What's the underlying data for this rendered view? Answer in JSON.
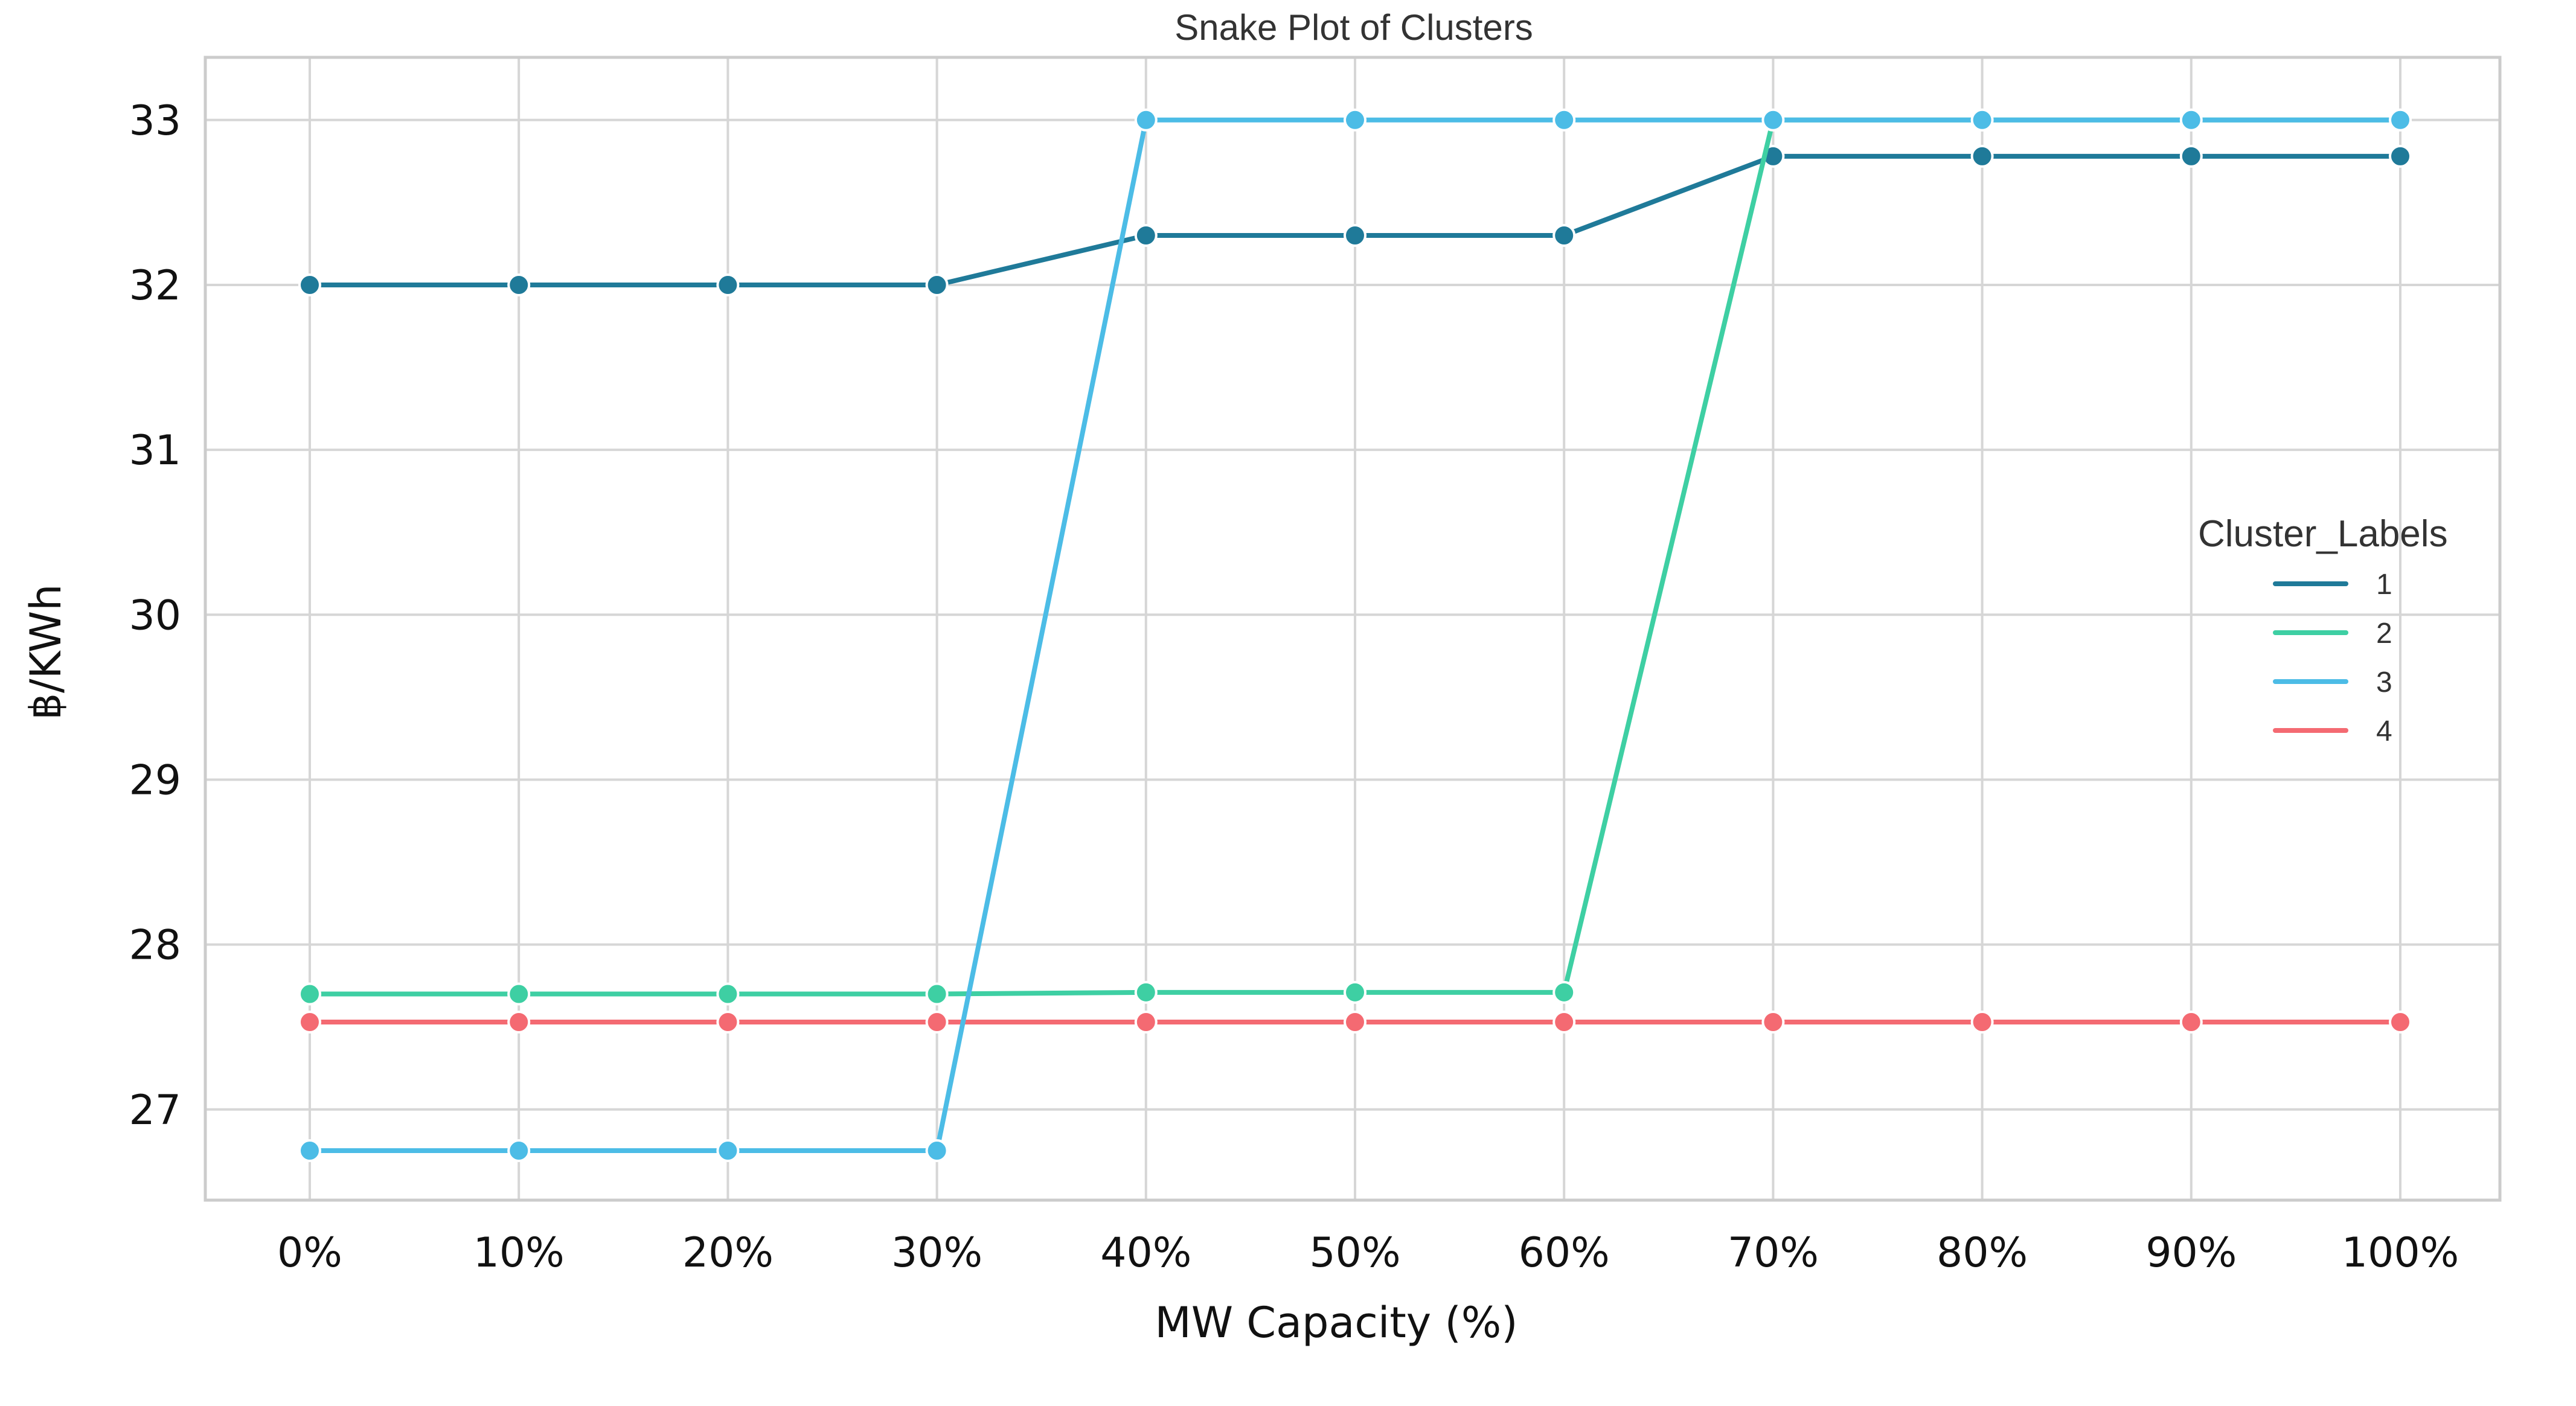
{
  "chart_data": {
    "type": "line",
    "title": "Snake Plot of Clusters",
    "xlabel": "MW Capacity (%)",
    "ylabel": "฿/KWh",
    "categories": [
      "0%",
      "10%",
      "20%",
      "30%",
      "40%",
      "50%",
      "60%",
      "70%",
      "80%",
      "90%",
      "100%"
    ],
    "ylim": [
      26.45,
      33.38
    ],
    "yticks": [
      27,
      28,
      29,
      30,
      31,
      32,
      33
    ],
    "grid": true,
    "legend": {
      "title": "Cluster_Labels",
      "placement": "right"
    },
    "series": [
      {
        "name": "1",
        "color": "#1f7a99",
        "values": [
          32.0,
          32.0,
          32.0,
          32.0,
          32.3,
          32.3,
          32.3,
          32.78,
          32.78,
          32.78,
          32.78
        ]
      },
      {
        "name": "2",
        "color": "#3ecfa3",
        "values": [
          27.7,
          27.7,
          27.7,
          27.7,
          27.71,
          27.71,
          27.71,
          33.0,
          33.0,
          33.0,
          33.0
        ]
      },
      {
        "name": "3",
        "color": "#4cbce6",
        "values": [
          26.75,
          26.75,
          26.75,
          26.75,
          33.0,
          33.0,
          33.0,
          33.0,
          33.0,
          33.0,
          33.0
        ]
      },
      {
        "name": "4",
        "color": "#f46a72",
        "values": [
          27.53,
          27.53,
          27.53,
          27.53,
          27.53,
          27.53,
          27.53,
          27.53,
          27.53,
          27.53,
          27.53
        ]
      }
    ]
  }
}
